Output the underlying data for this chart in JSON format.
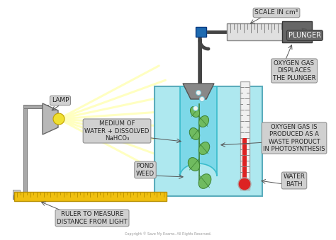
{
  "bg_color": "#ffffff",
  "copyright": "Copyright © Save My Exams. All Rights Reserved.",
  "labels": {
    "lamp": "LAMP",
    "scale": "SCALE IN cm³",
    "plunger": "PLUNGER",
    "oxygen_displaces": "OXYGEN GAS\nDISPLACES\nTHE PLUNGER",
    "medium": "MEDIUM OF\nWATER + DISSOLVED\nNaHCO₃",
    "pond_weed": "POND\nWEED",
    "oxygen_produced": "OXYGEN GAS IS\nPRODUCED AS A\nWASTE PRODUCT\nIN PHOTOSYNTHESIS",
    "water_bath": "WATER\nBATH",
    "ruler": "RULER TO MEASURE\nDISTANCE FROM LIGHT"
  },
  "colors": {
    "water_bath_fill": "#aee8ef",
    "tube_water": "#7dd8e8",
    "lamp_body": "#b8b8b8",
    "lamp_bulb": "#f0e030",
    "stand_color": "#a8a8a8",
    "plunger_body": "#666666",
    "plunger_dark": "#444444",
    "plunger_blue": "#1e6ab0",
    "syringe_body": "#d8d8d8",
    "ruler_yellow": "#f0c010",
    "ruler_dark": "#b89000",
    "label_bg": "#d0d0d0",
    "thermometer_body": "#e8e8e8",
    "thermometer_fill": "#dd2222",
    "funnel": "#888888",
    "weed_green": "#70bb60",
    "weed_dark": "#3a8030",
    "tubing": "#444444",
    "bubble": "#c0f0f8"
  }
}
